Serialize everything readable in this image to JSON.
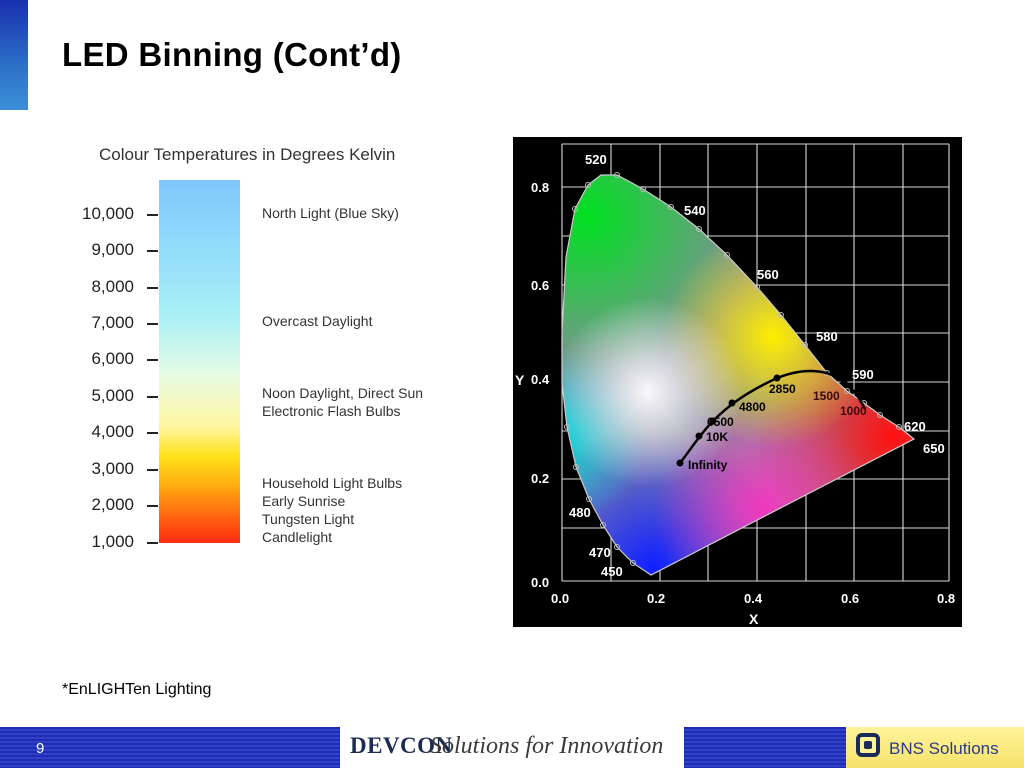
{
  "slide": {
    "title": "LED Binning (Cont’d)",
    "footnote": "*EnLIGHTen Lighting",
    "page_number": "9"
  },
  "kelvin_scale": {
    "heading": "Colour Temperatures in Degrees Kelvin",
    "ticks": [
      "10,000",
      "9,000",
      "8,000",
      "7,000",
      "6,000",
      "5,000",
      "4,000",
      "3,000",
      "2,000",
      "1,000"
    ],
    "descriptions": [
      {
        "lines": [
          "North Light (Blue Sky)"
        ]
      },
      {
        "lines": [
          "Overcast Daylight"
        ]
      },
      {
        "lines": [
          "Noon Daylight, Direct Sun",
          "Electronic Flash Bulbs"
        ]
      },
      {
        "lines": [
          "Household Light Bulbs",
          "Early Sunrise",
          "Tungsten Light",
          "Candlelight"
        ]
      }
    ]
  },
  "cie_diagram": {
    "x_axis_label": "X",
    "y_axis_label": "Y",
    "x_ticks": [
      "0.0",
      "0.2",
      "0.4",
      "0.6",
      "0.8"
    ],
    "y_ticks": [
      "0.0",
      "0.2",
      "0.4",
      "0.6",
      "0.8"
    ],
    "wavelength_labels": [
      "520",
      "540",
      "560",
      "580",
      "590",
      "620",
      "650",
      "480",
      "470",
      "450"
    ],
    "planckian_points": [
      {
        "label": "Infinity",
        "x": 0.24,
        "y": 0.235
      },
      {
        "label": "10K",
        "x": 0.28,
        "y": 0.29
      },
      {
        "label": "6500",
        "x": 0.313,
        "y": 0.329
      },
      {
        "label": "4800",
        "x": 0.35,
        "y": 0.355
      },
      {
        "label": "2850",
        "x": 0.448,
        "y": 0.407
      },
      {
        "label": "1500",
        "x": 0.585,
        "y": 0.393
      },
      {
        "label": "1000",
        "x": 0.652,
        "y": 0.345
      }
    ]
  },
  "footer": {
    "devcon_logo": "DEVCON",
    "devcon_tagline": "Solutions for Innovation",
    "bns_label": "BNS Solutions"
  },
  "colors": {
    "footer_blue": "#1e2eb4",
    "bns_yellow": "#fff39a",
    "accent_bar": "#2d72c8"
  }
}
